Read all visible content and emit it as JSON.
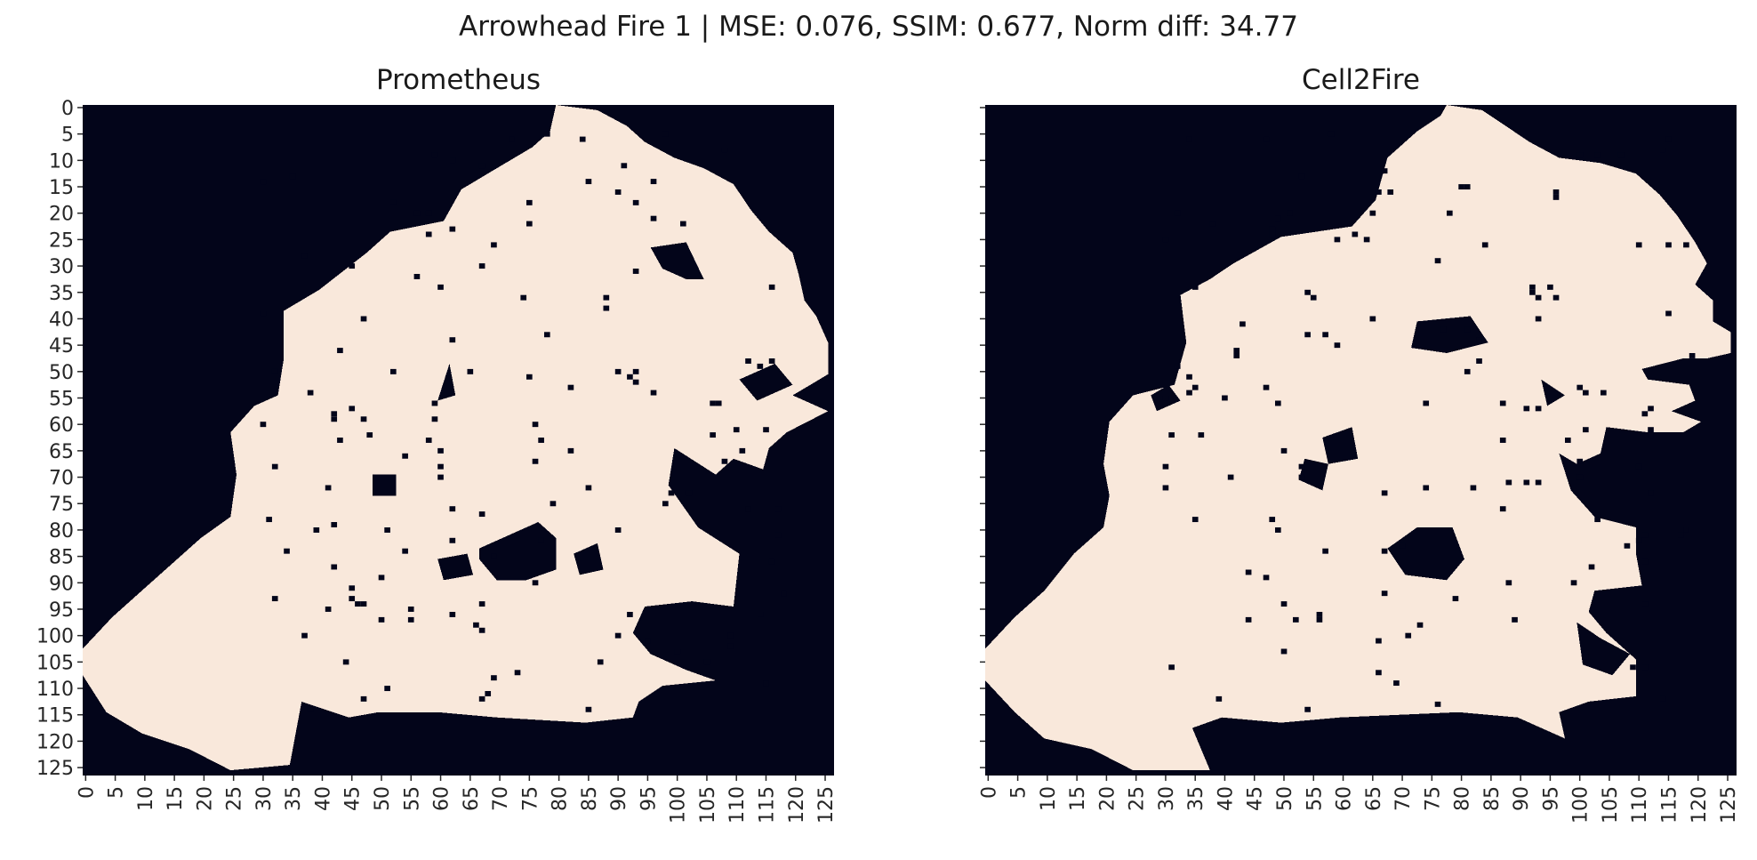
{
  "figure_title": "Arrowhead Fire 1 | MSE: 0.076, SSIM: 0.677, Norm diff: 34.77",
  "colors": {
    "burned": "#f9e8db",
    "unburned": "#03051a",
    "axis": "#262626"
  },
  "chart_data": [
    {
      "type": "heatmap",
      "title": "Prometheus",
      "grid_size": [
        127,
        127
      ],
      "xlim": [
        0,
        126
      ],
      "ylim": [
        0,
        125
      ],
      "x_ticks": [
        0,
        5,
        10,
        15,
        20,
        25,
        30,
        35,
        40,
        45,
        50,
        55,
        60,
        65,
        70,
        75,
        80,
        85,
        90,
        95,
        100,
        105,
        110,
        115,
        120,
        125
      ],
      "y_ticks": [
        0,
        5,
        10,
        15,
        20,
        25,
        30,
        35,
        40,
        45,
        50,
        55,
        60,
        65,
        70,
        75,
        80,
        85,
        90,
        95,
        100,
        105,
        110,
        115,
        120,
        125
      ],
      "values": "binary: burned (1) vs unburned (0)",
      "burned_boundary": [
        [
          80,
          0
        ],
        [
          87,
          1
        ],
        [
          92,
          4
        ],
        [
          95,
          7
        ],
        [
          100,
          10
        ],
        [
          105,
          12
        ],
        [
          110,
          15
        ],
        [
          113,
          20
        ],
        [
          116,
          24
        ],
        [
          120,
          28
        ],
        [
          121,
          32
        ],
        [
          122,
          37
        ],
        [
          124,
          40
        ],
        [
          126,
          45
        ],
        [
          126,
          51
        ],
        [
          123,
          53
        ],
        [
          120,
          55
        ],
        [
          126,
          58
        ],
        [
          119,
          62
        ],
        [
          116,
          65
        ],
        [
          115,
          69
        ],
        [
          110,
          67
        ],
        [
          107,
          70
        ],
        [
          100,
          65
        ],
        [
          99,
          72
        ],
        [
          104,
          80
        ],
        [
          111,
          85
        ],
        [
          110,
          95
        ],
        [
          103,
          94
        ],
        [
          95,
          95
        ],
        [
          93,
          100
        ],
        [
          96,
          104
        ],
        [
          102,
          107
        ],
        [
          107,
          109
        ],
        [
          98,
          110
        ],
        [
          94,
          113
        ],
        [
          93,
          116
        ],
        [
          85,
          117
        ],
        [
          70,
          116
        ],
        [
          60,
          115
        ],
        [
          50,
          115
        ],
        [
          45,
          116
        ],
        [
          37,
          113
        ],
        [
          35,
          125
        ],
        [
          25,
          126
        ],
        [
          18,
          122
        ],
        [
          10,
          119
        ],
        [
          4,
          115
        ],
        [
          0,
          108
        ],
        [
          0,
          103
        ],
        [
          5,
          97
        ],
        [
          10,
          92
        ],
        [
          15,
          87
        ],
        [
          20,
          82
        ],
        [
          25,
          78
        ],
        [
          26,
          70
        ],
        [
          25,
          62
        ],
        [
          29,
          57
        ],
        [
          33,
          55
        ],
        [
          34,
          48
        ],
        [
          34,
          39
        ],
        [
          40,
          35
        ],
        [
          48,
          28
        ],
        [
          52,
          24
        ],
        [
          61,
          22
        ],
        [
          64,
          16
        ],
        [
          70,
          12
        ],
        [
          76,
          8
        ],
        [
          79,
          5
        ]
      ],
      "unburned_holes": [
        [
          [
            67,
            84
          ],
          [
            77,
            79
          ],
          [
            80,
            82
          ],
          [
            80,
            88
          ],
          [
            75,
            90
          ],
          [
            70,
            90
          ],
          [
            67,
            86
          ]
        ],
        [
          [
            96,
            27
          ],
          [
            102,
            26
          ],
          [
            105,
            33
          ],
          [
            102,
            33
          ],
          [
            98,
            31
          ]
        ],
        [
          [
            111,
            52
          ],
          [
            117,
            49
          ],
          [
            120,
            53
          ],
          [
            114,
            56
          ]
        ],
        [
          [
            49,
            70
          ],
          [
            53,
            70
          ],
          [
            53,
            74
          ],
          [
            49,
            74
          ]
        ],
        [
          [
            60,
            86
          ],
          [
            65,
            85
          ],
          [
            66,
            89
          ],
          [
            61,
            90
          ]
        ],
        [
          [
            62,
            49
          ],
          [
            63,
            55
          ],
          [
            60,
            56
          ]
        ],
        [
          [
            83,
            85
          ],
          [
            87,
            83
          ],
          [
            88,
            88
          ],
          [
            84,
            89
          ]
        ]
      ]
    },
    {
      "type": "heatmap",
      "title": "Cell2Fire",
      "grid_size": [
        127,
        127
      ],
      "xlim": [
        0,
        126
      ],
      "ylim": [
        0,
        125
      ],
      "x_ticks": [
        0,
        5,
        10,
        15,
        20,
        25,
        30,
        35,
        40,
        45,
        50,
        55,
        60,
        65,
        70,
        75,
        80,
        85,
        90,
        95,
        100,
        105,
        110,
        115,
        120,
        125
      ],
      "y_ticks": [
        0,
        5,
        10,
        15,
        20,
        25,
        30,
        35,
        40,
        45,
        50,
        55,
        60,
        65,
        70,
        75,
        80,
        85,
        90,
        95,
        100,
        105,
        110,
        115,
        120,
        125
      ],
      "values": "binary: burned (1) vs unburned (0)",
      "burned_boundary": [
        [
          78,
          0
        ],
        [
          84,
          1
        ],
        [
          88,
          4
        ],
        [
          92,
          7
        ],
        [
          97,
          10
        ],
        [
          104,
          11
        ],
        [
          110,
          13
        ],
        [
          114,
          17
        ],
        [
          117,
          21
        ],
        [
          120,
          26
        ],
        [
          122,
          30
        ],
        [
          120,
          34
        ],
        [
          123,
          37
        ],
        [
          123,
          41
        ],
        [
          126,
          43
        ],
        [
          126,
          47
        ],
        [
          122,
          48
        ],
        [
          118,
          48
        ],
        [
          111,
          50
        ],
        [
          112,
          52
        ],
        [
          119,
          53
        ],
        [
          120,
          56
        ],
        [
          116,
          58
        ],
        [
          121,
          60
        ],
        [
          118,
          62
        ],
        [
          112,
          62
        ],
        [
          105,
          61
        ],
        [
          104,
          66
        ],
        [
          100,
          68
        ],
        [
          97,
          66
        ],
        [
          99,
          73
        ],
        [
          103,
          78
        ],
        [
          110,
          80
        ],
        [
          110,
          85
        ],
        [
          111,
          91
        ],
        [
          103,
          92
        ],
        [
          102,
          96
        ],
        [
          105,
          100
        ],
        [
          110,
          105
        ],
        [
          110,
          112
        ],
        [
          102,
          113
        ],
        [
          97,
          115
        ],
        [
          98,
          120
        ],
        [
          90,
          116
        ],
        [
          80,
          115
        ],
        [
          60,
          116
        ],
        [
          50,
          117
        ],
        [
          40,
          116
        ],
        [
          35,
          118
        ],
        [
          38,
          126
        ],
        [
          25,
          126
        ],
        [
          18,
          122
        ],
        [
          10,
          120
        ],
        [
          5,
          115
        ],
        [
          0,
          109
        ],
        [
          0,
          103
        ],
        [
          5,
          97
        ],
        [
          10,
          92
        ],
        [
          15,
          85
        ],
        [
          20,
          80
        ],
        [
          21,
          74
        ],
        [
          20,
          68
        ],
        [
          21,
          60
        ],
        [
          25,
          55
        ],
        [
          32,
          53
        ],
        [
          34,
          45
        ],
        [
          33,
          36
        ],
        [
          38,
          33
        ],
        [
          42,
          30
        ],
        [
          50,
          25
        ],
        [
          62,
          23
        ],
        [
          66,
          18
        ],
        [
          68,
          10
        ],
        [
          73,
          5
        ],
        [
          77,
          2
        ]
      ],
      "unburned_holes": [
        [
          [
            73,
            80
          ],
          [
            79,
            80
          ],
          [
            81,
            86
          ],
          [
            78,
            90
          ],
          [
            71,
            89
          ],
          [
            68,
            84
          ]
        ],
        [
          [
            73,
            41
          ],
          [
            82,
            40
          ],
          [
            85,
            45
          ],
          [
            78,
            47
          ],
          [
            72,
            46
          ]
        ],
        [
          [
            57,
            63
          ],
          [
            62,
            61
          ],
          [
            63,
            67
          ],
          [
            58,
            68
          ]
        ],
        [
          [
            100,
            98
          ],
          [
            104,
            101
          ],
          [
            109,
            104
          ],
          [
            106,
            108
          ],
          [
            101,
            106
          ]
        ],
        [
          [
            94,
            52
          ],
          [
            98,
            55
          ],
          [
            95,
            57
          ]
        ],
        [
          [
            31,
            53
          ],
          [
            33,
            56
          ],
          [
            29,
            58
          ],
          [
            28,
            55
          ]
        ],
        [
          [
            54,
            67
          ],
          [
            58,
            68
          ],
          [
            57,
            73
          ],
          [
            53,
            71
          ]
        ]
      ]
    }
  ]
}
